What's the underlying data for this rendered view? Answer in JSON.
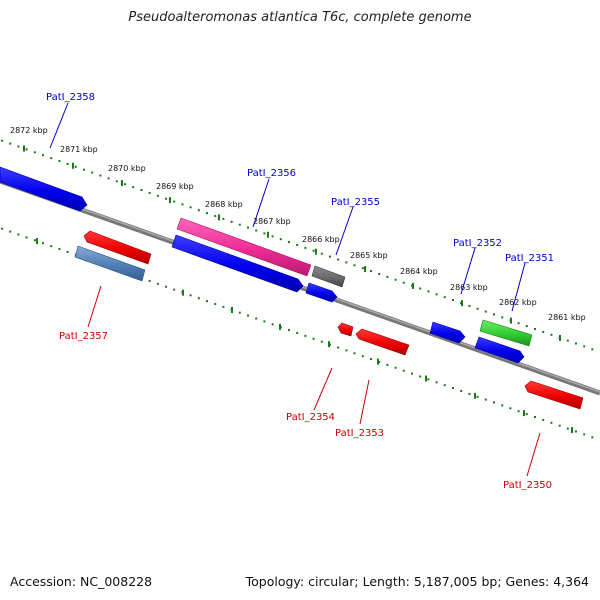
{
  "title": "Pseudoalteromonas atlantica T6c, complete genome",
  "footer": {
    "accession": "Accession: NC_008228",
    "stats": "Topology: circular; Length: 5,187,005 bp; Genes: 4,364"
  },
  "colors": {
    "forward_label": "#0000cc",
    "reverse_label": "#cc0000",
    "tick": "#1a7a1a",
    "backbone": "#888888"
  },
  "kbp_labels": [
    "2872 kbp",
    "2871 kbp",
    "2870 kbp",
    "2869 kbp",
    "2868 kbp",
    "2867 kbp",
    "2866 kbp",
    "2865 kbp",
    "2864 kbp",
    "2863 kbp",
    "2862 kbp",
    "2861 kbp"
  ],
  "gene_labels": [
    "PatI_2358",
    "PatI_2356",
    "PatI_2355",
    "PatI_2352",
    "PatI_2351",
    "PatI_2357",
    "PatI_2354",
    "PatI_2353",
    "PatI_2350"
  ]
}
